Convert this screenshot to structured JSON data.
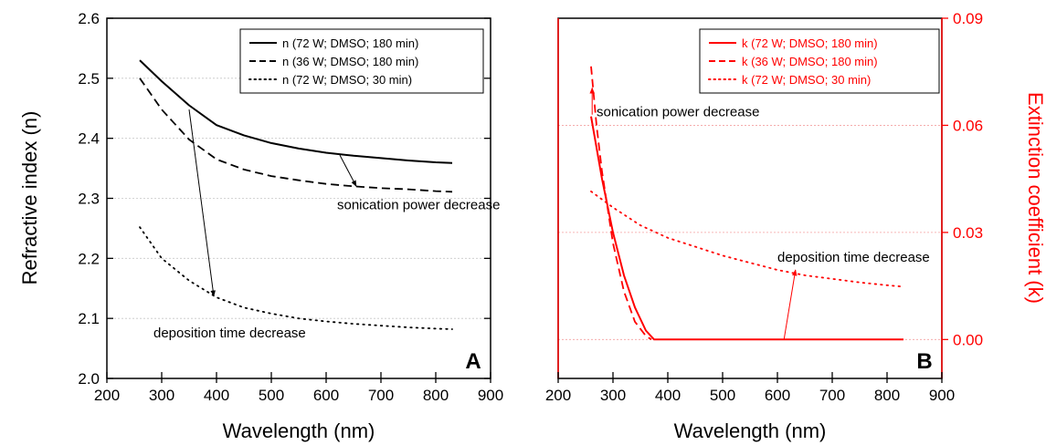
{
  "chart_data": [
    {
      "panel": "A",
      "type": "line",
      "xlabel": "Wavelength (nm)",
      "ylabel": "Refractive index (n)",
      "xlim": [
        200,
        900
      ],
      "ylim": [
        2.0,
        2.6
      ],
      "x_ticks": [
        "200",
        "300",
        "400",
        "500",
        "600",
        "700",
        "800",
        "900"
      ],
      "y_ticks": [
        "2.0",
        "2.1",
        "2.2",
        "2.3",
        "2.4",
        "2.5",
        "2.6"
      ],
      "grid": "horizontal dotted",
      "legend_position": "top-right",
      "series": [
        {
          "name": "n (72 W; DMSO; 180 min)",
          "style": "solid",
          "color": "#000000",
          "x": [
            260,
            300,
            350,
            400,
            450,
            500,
            550,
            600,
            650,
            700,
            750,
            800,
            830
          ],
          "y": [
            2.53,
            2.495,
            2.455,
            2.422,
            2.405,
            2.392,
            2.383,
            2.376,
            2.371,
            2.367,
            2.363,
            2.36,
            2.359
          ]
        },
        {
          "name": "n (36 W; DMSO; 180 min)",
          "style": "dashed",
          "color": "#000000",
          "x": [
            260,
            300,
            350,
            400,
            450,
            500,
            550,
            600,
            650,
            700,
            750,
            800,
            830
          ],
          "y": [
            2.5,
            2.448,
            2.398,
            2.365,
            2.348,
            2.337,
            2.33,
            2.324,
            2.32,
            2.317,
            2.315,
            2.312,
            2.311
          ]
        },
        {
          "name": "n (72 W; DMSO; 30 min)",
          "style": "dotted",
          "color": "#000000",
          "x": [
            260,
            300,
            350,
            400,
            450,
            500,
            550,
            600,
            650,
            700,
            750,
            800,
            830
          ],
          "y": [
            2.252,
            2.2,
            2.163,
            2.135,
            2.118,
            2.108,
            2.1,
            2.095,
            2.091,
            2.088,
            2.085,
            2.083,
            2.082
          ]
        }
      ],
      "annotations": [
        {
          "text": "sonication power decrease",
          "arrow_from": [
            625,
            2.372
          ],
          "arrow_to": [
            655,
            2.32
          ],
          "text_at": [
            620,
            2.282
          ]
        },
        {
          "text": "deposition time decrease",
          "arrow_from": [
            350,
            2.448
          ],
          "arrow_to": [
            395,
            2.137
          ],
          "text_at": [
            285,
            2.068
          ]
        }
      ],
      "panel_label": "A"
    },
    {
      "panel": "B",
      "type": "line",
      "xlabel": "Wavelength (nm)",
      "ylabel": "Extinction coefficient (k)",
      "xlim": [
        200,
        900
      ],
      "ylim": [
        -0.0109,
        0.09
      ],
      "x_ticks": [
        "200",
        "300",
        "400",
        "500",
        "600",
        "700",
        "800",
        "900"
      ],
      "y_ticks": [
        "0.00",
        "0.03",
        "0.06",
        "0.09"
      ],
      "y_axis_side": "right",
      "grid": "horizontal dotted",
      "legend_position": "top-right",
      "series": [
        {
          "name": "k (72 W; DMSO; 180 min)",
          "style": "solid",
          "color": "#ff0000",
          "x": [
            260,
            280,
            300,
            320,
            340,
            360,
            375,
            400,
            500,
            600,
            700,
            800,
            830
          ],
          "y": [
            0.0625,
            0.045,
            0.03,
            0.018,
            0.009,
            0.0025,
            0.0,
            0.0,
            0.0,
            0.0,
            0.0,
            0.0,
            0.0
          ]
        },
        {
          "name": "k (36 W; DMSO; 180 min)",
          "style": "dashed",
          "color": "#ff0000",
          "x": [
            260,
            270,
            280,
            300,
            320,
            340,
            360,
            370
          ],
          "y": [
            0.0765,
            0.06,
            0.047,
            0.027,
            0.0135,
            0.005,
            0.001,
            0.0
          ]
        },
        {
          "name": "k (72 W; DMSO; 30 min)",
          "style": "dotted",
          "color": "#ff0000",
          "x": [
            260,
            300,
            350,
            400,
            450,
            500,
            550,
            600,
            650,
            700,
            750,
            800,
            830
          ],
          "y": [
            0.0415,
            0.037,
            0.032,
            0.0285,
            0.026,
            0.0235,
            0.0215,
            0.0195,
            0.018,
            0.017,
            0.016,
            0.0152,
            0.0148
          ]
        }
      ],
      "annotations": [
        {
          "text": "sonication power decrease",
          "arrow_from": [
            262,
            0.063
          ],
          "arrow_to": [
            262,
            0.0705
          ],
          "text_at": [
            270,
            0.0625
          ]
        },
        {
          "text": "deposition time decrease",
          "arrow_from": [
            612,
            0.0
          ],
          "arrow_to": [
            633,
            0.0195
          ],
          "text_at": [
            600,
            0.0218
          ]
        }
      ],
      "panel_label": "B"
    }
  ]
}
